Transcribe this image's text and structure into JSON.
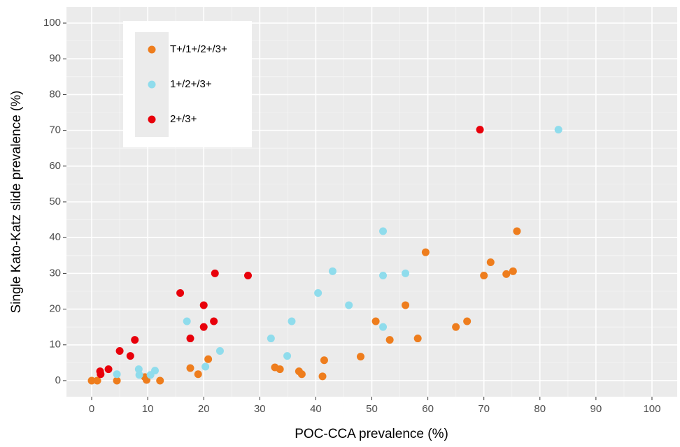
{
  "chart_data": {
    "type": "scatter",
    "xlabel": "POC-CCA prevalence (%)",
    "ylabel": "Single Kato-Katz slide prevalence (%)",
    "xlim": [
      -4.5,
      104.5
    ],
    "ylim": [
      -4.5,
      104.5
    ],
    "xticks": [
      0,
      10,
      20,
      30,
      40,
      50,
      60,
      70,
      80,
      90,
      100
    ],
    "yticks": [
      0,
      10,
      20,
      30,
      40,
      50,
      60,
      70,
      80,
      90,
      100
    ],
    "grid": true,
    "legend": "upper left",
    "series": [
      {
        "name": "T+/1+/2+/3+",
        "color": "#ee7d1d",
        "x": [
          0,
          1,
          4.5,
          9.5,
          9.8,
          12.2,
          17.6,
          19,
          20.8,
          32.7,
          33.6,
          37,
          37.5,
          41.2,
          41.5,
          48,
          50.7,
          53.2,
          56,
          58.2,
          59.6,
          65,
          67,
          70,
          71.2,
          74,
          75.2,
          75.9
        ],
        "values": [
          0,
          0,
          0,
          1,
          0.2,
          0,
          3.5,
          1.8,
          6,
          3.7,
          3.2,
          2.6,
          1.8,
          1.2,
          5.7,
          6.7,
          16.6,
          11.4,
          21.1,
          11.8,
          35.9,
          15,
          16.6,
          29.4,
          33.1,
          29.8,
          30.6,
          41.8
        ]
      },
      {
        "name": "1+/2+/3+",
        "color": "#8fdcec",
        "x": [
          4.5,
          8.4,
          8.5,
          10.5,
          11.3,
          17,
          20.3,
          22.9,
          32,
          34.9,
          35.7,
          40.4,
          43,
          45.9,
          52,
          52,
          52,
          56,
          83.3
        ],
        "values": [
          1.8,
          3.2,
          1.6,
          1.6,
          2.8,
          16.6,
          3.9,
          8.3,
          11.8,
          6.9,
          16.6,
          24.5,
          30.6,
          21.1,
          41.8,
          29.4,
          15,
          30,
          70.2
        ]
      },
      {
        "name": "2+/3+",
        "color": "#e8000b",
        "x": [
          1.5,
          1.6,
          3,
          5,
          6.9,
          7.7,
          15.8,
          17.6,
          20,
          20,
          21.8,
          22,
          27.9,
          69.3
        ],
        "values": [
          2.6,
          1.8,
          3.2,
          8.3,
          6.9,
          11.4,
          24.5,
          11.8,
          21.1,
          15,
          16.6,
          30,
          29.4,
          70.2
        ]
      }
    ]
  }
}
